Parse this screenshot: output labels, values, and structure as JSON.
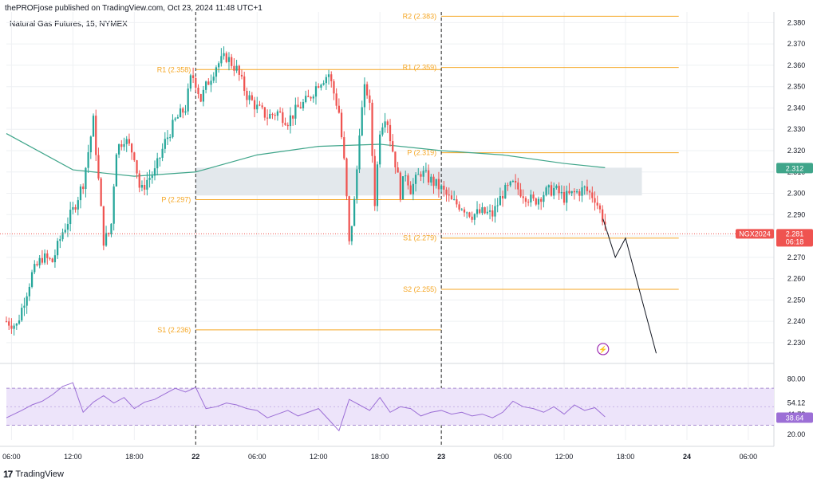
{
  "header": {
    "published_by": "thePROFjose published on TradingView.com, Oct 23, 2024 11:48 UTC+1",
    "symbol_line": "Natural Gas Futures, 15, NYMEX"
  },
  "footer": {
    "brand": "TradingView",
    "logo_glyph": "17"
  },
  "colors": {
    "up": "#26a69a",
    "down": "#ef5350",
    "pivot": "#f5a623",
    "ma": "#3fa58a",
    "rsi": "#9c6fd6",
    "rsi_band": "#ede4fa",
    "zone": "#e3e8ec",
    "grid": "#eef0f3"
  },
  "chart_data": [
    {
      "type": "candlestick",
      "name": "price",
      "title": "Natural Gas Futures, 15, NYMEX",
      "y_ticks": [
        2.23,
        2.24,
        2.25,
        2.26,
        2.27,
        2.28,
        2.29,
        2.3,
        2.31,
        2.32,
        2.33,
        2.34,
        2.35,
        2.36,
        2.37,
        2.38
      ],
      "y_tick_labels": [
        "2.230",
        "2.240",
        "2.250",
        "2.260",
        "2.270",
        "2.280",
        "2.290",
        "2.300",
        "2.310",
        "2.320",
        "2.330",
        "2.340",
        "2.350",
        "2.360",
        "2.370",
        "2.380"
      ],
      "ylim": [
        2.221,
        2.385
      ],
      "x_ticks": [
        "06:00",
        "12:00",
        "18:00",
        "22",
        "06:00",
        "12:00",
        "18:00",
        "23",
        "06:00",
        "12:00",
        "18:00",
        "24",
        "06:00"
      ],
      "x_tick_hours": [
        -18,
        -12,
        -6,
        0,
        6,
        12,
        18,
        24,
        30,
        36,
        42,
        48,
        54
      ],
      "x_range_hours": [
        -18.5,
        56.5
      ],
      "session_separators_hours": [
        0,
        24
      ],
      "pivot_levels": [
        {
          "label": "R2 (2.383)",
          "value": 2.383,
          "from_h": 24,
          "to_h": 47.2
        },
        {
          "label": "R1 (2.359)",
          "value": 2.359,
          "from_h": 24,
          "to_h": 47.2
        },
        {
          "label": "P (2.319)",
          "value": 2.319,
          "from_h": 24,
          "to_h": 47.2
        },
        {
          "label": "S1 (2.279)",
          "value": 2.279,
          "from_h": 24,
          "to_h": 47.2
        },
        {
          "label": "S2 (2.255)",
          "value": 2.255,
          "from_h": 24,
          "to_h": 47.2
        },
        {
          "label": "R1 (2.358)",
          "value": 2.358,
          "from_h": 0,
          "to_h": 24
        },
        {
          "label": "P (2.297)",
          "value": 2.297,
          "from_h": 0,
          "to_h": 24
        },
        {
          "label": "S1 (2.236)",
          "value": 2.236,
          "from_h": 0,
          "to_h": 24
        }
      ],
      "zone": {
        "from_h": 0,
        "to_h": 43.6,
        "low": 2.299,
        "high": 2.312
      },
      "moving_average": {
        "value_label": "2.312",
        "points": [
          [
            -18.5,
            2.328
          ],
          [
            -12,
            2.311
          ],
          [
            -6,
            2.308
          ],
          [
            0,
            2.31
          ],
          [
            6,
            2.318
          ],
          [
            12,
            2.322
          ],
          [
            18,
            2.323
          ],
          [
            24,
            2.32
          ],
          [
            30,
            2.318
          ],
          [
            36,
            2.314
          ],
          [
            40,
            2.312
          ]
        ]
      },
      "current_price": {
        "symbol": "NGX2024",
        "value": 2.281,
        "value_label": "2.281",
        "countdown": "06:18"
      },
      "projection": [
        [
          39.8,
          2.288
        ],
        [
          41.0,
          2.27
        ],
        [
          42.0,
          2.279
        ],
        [
          45.0,
          2.225
        ]
      ],
      "candles": []
    },
    {
      "type": "line",
      "name": "RSI",
      "yticks": [
        80.0,
        54.12,
        41.78,
        20.0
      ],
      "ytick_labels": [
        "80.00",
        "54.12",
        "41.78",
        "20.00"
      ],
      "ylim": [
        14,
        90
      ],
      "band": [
        30,
        70
      ],
      "last_value": 38.64,
      "last_label": "38.64",
      "series": [
        {
          "hours": [
            -18.5,
            -17,
            -16,
            -15,
            -14,
            -13,
            -12,
            -11,
            -10,
            -9,
            -8,
            -7,
            -6,
            -5,
            -4,
            -3,
            -2,
            -1,
            0,
            1,
            2,
            3,
            4,
            5,
            6,
            7,
            8,
            9,
            10,
            11,
            12,
            13,
            14,
            15,
            16,
            17,
            18,
            19,
            20,
            21,
            22,
            23,
            24,
            25,
            26,
            27,
            28,
            29,
            30,
            31,
            32,
            33,
            34,
            35,
            36,
            37,
            38,
            39,
            40
          ],
          "values": [
            38,
            46,
            52,
            56,
            63,
            72,
            76,
            44,
            55,
            62,
            54,
            60,
            48,
            55,
            58,
            64,
            70,
            66,
            71,
            48,
            50,
            54,
            52,
            48,
            46,
            38,
            42,
            46,
            40,
            44,
            48,
            36,
            24,
            58,
            52,
            46,
            60,
            44,
            50,
            48,
            40,
            44,
            46,
            42,
            44,
            40,
            42,
            38,
            44,
            56,
            50,
            48,
            44,
            50,
            42,
            52,
            46,
            49,
            39
          ]
        }
      ]
    }
  ]
}
